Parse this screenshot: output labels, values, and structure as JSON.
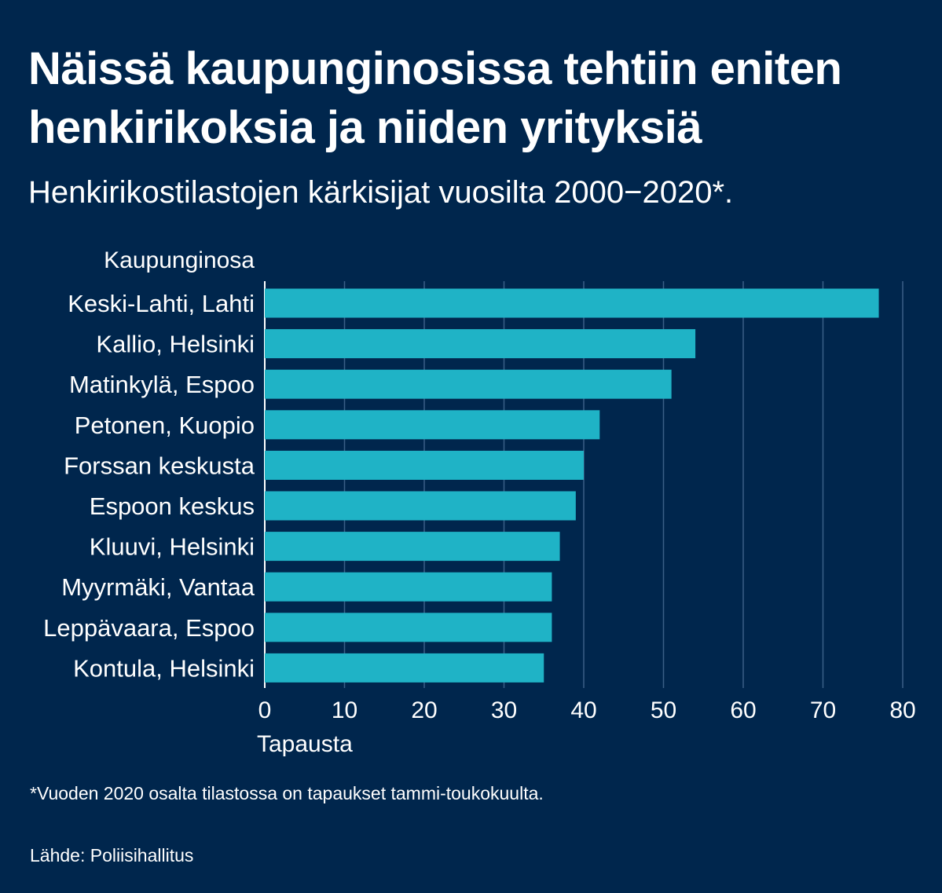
{
  "title": "Näissä kaupunginosissa tehtiin eniten henkirikoksia ja niiden yrityksiä",
  "subtitle": "Henkirikostilastojen kärkisijat vuosilta 2000−2020*.",
  "footnote": "*Vuoden 2020 osalta tilastossa on tapaukset tammi-toukokuulta.",
  "source": "Lähde: Poliisihallitus",
  "colors": {
    "background": "#00264d",
    "bar": "#1fb3c6",
    "grid": "#3a5f86",
    "text": "#ffffff"
  },
  "chart_data": {
    "type": "bar",
    "orientation": "horizontal",
    "ylabel": "Kaupunginosa",
    "xlabel": "Tapausta",
    "categories": [
      "Keski-Lahti, Lahti",
      "Kallio, Helsinki",
      "Matinkylä, Espoo",
      "Petonen, Kuopio",
      "Forssan keskusta",
      "Espoon keskus",
      "Kluuvi, Helsinki",
      "Myyrmäki, Vantaa",
      "Leppävaara, Espoo",
      "Kontula, Helsinki"
    ],
    "values": [
      77,
      54,
      51,
      42,
      40,
      39,
      37,
      36,
      36,
      35
    ],
    "xlim": [
      0,
      80
    ],
    "xticks": [
      0,
      10,
      20,
      30,
      40,
      50,
      60,
      70,
      80
    ],
    "grid": "vertical",
    "legend": "none"
  }
}
